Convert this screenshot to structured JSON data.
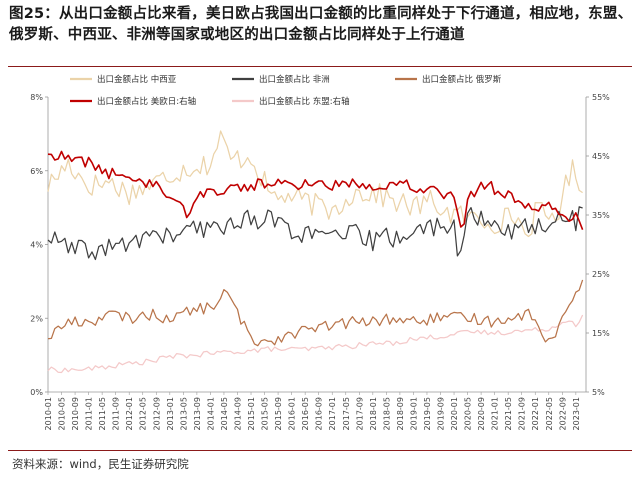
{
  "title": "图25：从出口金额占比来看，美日欧占我国出口金额的比重同样处于下行通道，相应地，东盟、俄罗斯、中西亚、非洲等国家或地区的出口金额占比同样处于上行通道",
  "source": "资料来源：wind，民生证券研究院",
  "colors": {
    "central_west_asia": "#ebd3a9",
    "africa": "#404040",
    "russia": "#b8744a",
    "us_japan_eu": "#c00000",
    "asean": "#f4c9c9"
  },
  "chart_data": {
    "type": "line",
    "x_start": "2010-01",
    "x_end": "2023-03",
    "x_tick_labels": [
      "2010-01",
      "2010-05",
      "2010-09",
      "2011-01",
      "2011-05",
      "2011-09",
      "2012-01",
      "2012-05",
      "2012-09",
      "2013-01",
      "2013-05",
      "2013-09",
      "2014-01",
      "2014-05",
      "2014-09",
      "2015-01",
      "2015-05",
      "2015-09",
      "2016-01",
      "2016-05",
      "2016-09",
      "2017-01",
      "2017-05",
      "2017-09",
      "2018-01",
      "2018-05",
      "2018-09",
      "2019-01",
      "2019-05",
      "2019-09",
      "2020-01",
      "2020-05",
      "2020-09",
      "2021-01",
      "2021-05",
      "2021-09",
      "2022-01",
      "2022-05",
      "2022-09",
      "2023-01"
    ],
    "left_axis": {
      "min": 0,
      "max": 8,
      "ticks": [
        "0%",
        "2%",
        "4%",
        "6%",
        "8%"
      ]
    },
    "right_axis": {
      "min": 5,
      "max": 55,
      "ticks": [
        "5%",
        "15%",
        "25%",
        "35%",
        "45%",
        "55%"
      ]
    },
    "series": [
      {
        "key": "central_west_asia",
        "name": "出口金额占比 中西亚",
        "axis": "left",
        "anchors": [
          [
            2010.0,
            5.6
          ],
          [
            2010.5,
            6.2
          ],
          [
            2011.0,
            5.6
          ],
          [
            2011.5,
            5.7
          ],
          [
            2012.0,
            5.4
          ],
          [
            2012.5,
            5.6
          ],
          [
            2013.0,
            5.9
          ],
          [
            2013.5,
            6.1
          ],
          [
            2014.0,
            6.2
          ],
          [
            2014.25,
            6.9
          ],
          [
            2014.5,
            6.3
          ],
          [
            2015.0,
            6.4
          ],
          [
            2015.5,
            5.3
          ],
          [
            2016.0,
            5.3
          ],
          [
            2016.5,
            5.1
          ],
          [
            2017.0,
            4.9
          ],
          [
            2017.5,
            5.4
          ],
          [
            2018.0,
            5.4
          ],
          [
            2018.5,
            5.2
          ],
          [
            2019.0,
            5.0
          ],
          [
            2019.5,
            5.2
          ],
          [
            2019.75,
            4.9
          ],
          [
            2020.0,
            4.8
          ],
          [
            2020.5,
            4.7
          ],
          [
            2021.0,
            4.6
          ],
          [
            2021.5,
            4.8
          ],
          [
            2021.8,
            4.2
          ],
          [
            2022.0,
            4.9
          ],
          [
            2022.5,
            4.7
          ],
          [
            2022.75,
            5.6
          ],
          [
            2022.95,
            6.1
          ],
          [
            2023.2,
            5.4
          ]
        ],
        "noise": 0.32
      },
      {
        "key": "africa",
        "name": "出口金额占比 非洲",
        "axis": "left",
        "anchors": [
          [
            2010.0,
            4.2
          ],
          [
            2010.5,
            3.9
          ],
          [
            2011.0,
            3.8
          ],
          [
            2011.5,
            3.9
          ],
          [
            2012.0,
            4.0
          ],
          [
            2012.5,
            4.3
          ],
          [
            2013.0,
            4.2
          ],
          [
            2013.5,
            4.4
          ],
          [
            2014.0,
            4.4
          ],
          [
            2014.5,
            4.6
          ],
          [
            2015.0,
            4.7
          ],
          [
            2015.5,
            4.7
          ],
          [
            2016.0,
            4.4
          ],
          [
            2016.5,
            4.2
          ],
          [
            2017.0,
            4.2
          ],
          [
            2017.5,
            4.3
          ],
          [
            2018.0,
            4.1
          ],
          [
            2018.5,
            4.2
          ],
          [
            2019.0,
            4.3
          ],
          [
            2019.5,
            4.5
          ],
          [
            2020.0,
            4.6
          ],
          [
            2020.15,
            3.4
          ],
          [
            2020.3,
            4.8
          ],
          [
            2020.5,
            4.7
          ],
          [
            2021.0,
            4.5
          ],
          [
            2021.5,
            4.4
          ],
          [
            2022.0,
            4.5
          ],
          [
            2022.5,
            4.6
          ],
          [
            2022.9,
            4.9
          ],
          [
            2023.0,
            4.3
          ],
          [
            2023.1,
            5.3
          ],
          [
            2023.2,
            4.6
          ]
        ],
        "noise": 0.28
      },
      {
        "key": "russia",
        "name": "出口金额占比 俄罗斯",
        "axis": "left",
        "anchors": [
          [
            2010.0,
            1.5
          ],
          [
            2010.5,
            1.9
          ],
          [
            2011.0,
            1.9
          ],
          [
            2011.5,
            2.1
          ],
          [
            2012.0,
            2.0
          ],
          [
            2012.5,
            2.1
          ],
          [
            2013.0,
            2.0
          ],
          [
            2013.5,
            2.2
          ],
          [
            2014.0,
            2.3
          ],
          [
            2014.4,
            2.7
          ],
          [
            2014.6,
            2.3
          ],
          [
            2015.0,
            1.4
          ],
          [
            2015.5,
            1.4
          ],
          [
            2016.0,
            1.6
          ],
          [
            2016.5,
            1.7
          ],
          [
            2017.0,
            1.8
          ],
          [
            2017.5,
            1.9
          ],
          [
            2018.0,
            1.9
          ],
          [
            2018.5,
            2.0
          ],
          [
            2019.0,
            1.9
          ],
          [
            2019.5,
            2.0
          ],
          [
            2020.0,
            2.0
          ],
          [
            2020.5,
            2.0
          ],
          [
            2021.0,
            1.9
          ],
          [
            2021.5,
            2.1
          ],
          [
            2022.0,
            2.1
          ],
          [
            2022.2,
            1.3
          ],
          [
            2022.5,
            1.5
          ],
          [
            2022.7,
            2.2
          ],
          [
            2022.9,
            2.6
          ],
          [
            2023.0,
            2.6
          ],
          [
            2023.2,
            3.2
          ]
        ],
        "noise": 0.16
      },
      {
        "key": "us_japan_eu",
        "name": "出口金额占比 美欧日:右轴",
        "axis": "right",
        "anchors": [
          [
            2010.0,
            45.5
          ],
          [
            2010.5,
            44.5
          ],
          [
            2011.0,
            44.0
          ],
          [
            2011.5,
            42.0
          ],
          [
            2012.0,
            41.5
          ],
          [
            2012.5,
            40.5
          ],
          [
            2013.0,
            38.5
          ],
          [
            2013.3,
            37.5
          ],
          [
            2013.4,
            34.0
          ],
          [
            2013.6,
            38.0
          ],
          [
            2014.0,
            39.0
          ],
          [
            2014.5,
            39.5
          ],
          [
            2015.0,
            40.0
          ],
          [
            2015.5,
            40.5
          ],
          [
            2016.0,
            40.0
          ],
          [
            2016.5,
            40.5
          ],
          [
            2017.0,
            40.0
          ],
          [
            2017.5,
            40.5
          ],
          [
            2018.0,
            40.0
          ],
          [
            2018.5,
            40.5
          ],
          [
            2019.0,
            40.0
          ],
          [
            2019.5,
            39.0
          ],
          [
            2020.0,
            38.5
          ],
          [
            2020.2,
            33.0
          ],
          [
            2020.4,
            38.5
          ],
          [
            2020.8,
            40.5
          ],
          [
            2021.0,
            39.5
          ],
          [
            2021.5,
            37.5
          ],
          [
            2022.0,
            36.5
          ],
          [
            2022.5,
            36.0
          ],
          [
            2022.9,
            34.5
          ],
          [
            2023.0,
            35.5
          ],
          [
            2023.2,
            32.5
          ]
        ],
        "noise": 1.0
      },
      {
        "key": "asean",
        "name": "出口金额占比 东盟:右轴",
        "axis": "right",
        "anchors": [
          [
            2010.0,
            8.8
          ],
          [
            2010.5,
            8.7
          ],
          [
            2011.0,
            8.9
          ],
          [
            2011.5,
            9.3
          ],
          [
            2012.0,
            9.8
          ],
          [
            2012.5,
            10.2
          ],
          [
            2013.0,
            11.0
          ],
          [
            2013.5,
            11.2
          ],
          [
            2014.0,
            11.5
          ],
          [
            2014.5,
            11.8
          ],
          [
            2015.0,
            12.0
          ],
          [
            2015.5,
            12.3
          ],
          [
            2016.0,
            12.2
          ],
          [
            2016.5,
            12.3
          ],
          [
            2017.0,
            12.6
          ],
          [
            2017.5,
            12.8
          ],
          [
            2018.0,
            13.2
          ],
          [
            2018.5,
            13.3
          ],
          [
            2019.0,
            14.0
          ],
          [
            2019.5,
            14.3
          ],
          [
            2020.0,
            14.8
          ],
          [
            2020.5,
            15.2
          ],
          [
            2021.0,
            15.0
          ],
          [
            2021.5,
            15.3
          ],
          [
            2022.0,
            15.5
          ],
          [
            2022.5,
            16.0
          ],
          [
            2022.8,
            17.5
          ],
          [
            2023.0,
            16.5
          ],
          [
            2023.2,
            18.0
          ]
        ],
        "noise": 0.45
      }
    ]
  }
}
